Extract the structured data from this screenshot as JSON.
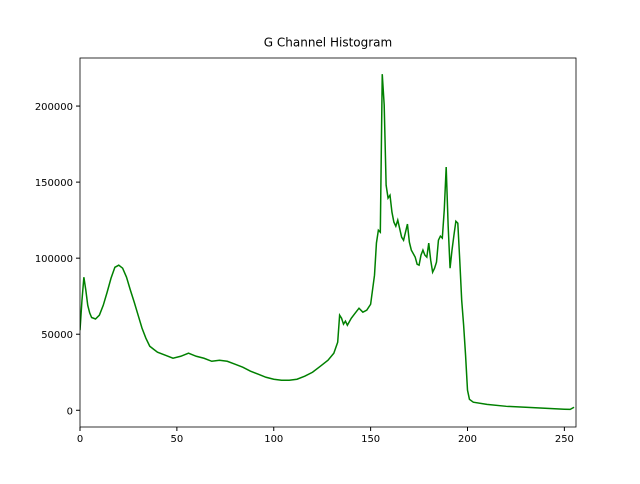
{
  "chart_data": {
    "type": "line",
    "title": "G Channel Histogram",
    "x": [
      0,
      1,
      2,
      3,
      4,
      5,
      6,
      8,
      10,
      12,
      14,
      16,
      18,
      20,
      22,
      24,
      26,
      28,
      30,
      32,
      34,
      36,
      38,
      40,
      44,
      48,
      52,
      56,
      60,
      64,
      68,
      72,
      76,
      80,
      84,
      88,
      92,
      96,
      100,
      104,
      108,
      112,
      116,
      120,
      124,
      128,
      131,
      133,
      134,
      135,
      136,
      137,
      138,
      140,
      142,
      144,
      146,
      148,
      150,
      152,
      153,
      154,
      155,
      156,
      157,
      158,
      159,
      160,
      161,
      162,
      163,
      164,
      166,
      167,
      168,
      169,
      170,
      171,
      173,
      174,
      175,
      176,
      177,
      178,
      179,
      180,
      181,
      182,
      183,
      184,
      185,
      186,
      187,
      188,
      189,
      190,
      191,
      192,
      193,
      194,
      195,
      196,
      197,
      198,
      199,
      200,
      201,
      203,
      210,
      220,
      230,
      240,
      250,
      253,
      255
    ],
    "series": [
      {
        "name": "G",
        "color": "#008000",
        "values": [
          52600,
          72000,
          87500,
          79000,
          69000,
          64000,
          61000,
          60000,
          62500,
          69000,
          77600,
          86800,
          94000,
          95400,
          93400,
          87500,
          79000,
          71000,
          62500,
          54000,
          47400,
          42100,
          40100,
          38200,
          36200,
          34200,
          35500,
          37500,
          35500,
          34200,
          32200,
          32900,
          32200,
          30300,
          28300,
          25700,
          23700,
          21700,
          20400,
          19700,
          19700,
          20400,
          22400,
          25000,
          28900,
          32900,
          37500,
          44700,
          62500,
          60500,
          56600,
          58600,
          55900,
          60500,
          63800,
          67100,
          64500,
          65800,
          69700,
          88800,
          110000,
          118400,
          117100,
          221000,
          200700,
          148000,
          139500,
          141400,
          130300,
          123700,
          121000,
          125000,
          113800,
          111800,
          117100,
          122400,
          110500,
          105300,
          100700,
          96000,
          95400,
          102000,
          105300,
          102000,
          100700,
          109900,
          98700,
          90800,
          93400,
          97400,
          111800,
          114500,
          113200,
          131600,
          159900,
          121700,
          93400,
          105300,
          115100,
          124300,
          123000,
          98700,
          72400,
          55900,
          36200,
          13200,
          7200,
          5300,
          3900,
          2600,
          2000,
          1300,
          700,
          600,
          2000
        ]
      }
    ],
    "xlim": [
      0,
      256
    ],
    "ylim": [
      -11000,
      231600
    ],
    "xticks": [
      0,
      50,
      100,
      150,
      200,
      250
    ],
    "yticks": [
      0,
      50000,
      100000,
      150000,
      200000
    ]
  }
}
